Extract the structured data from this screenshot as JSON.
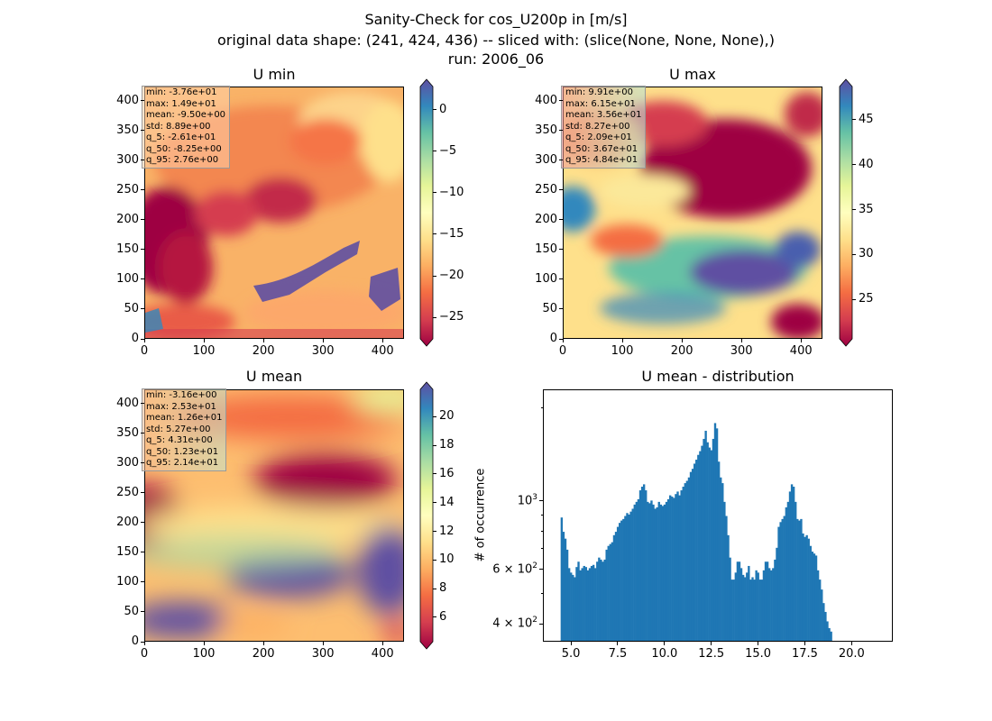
{
  "suptitle": {
    "line1": "Sanity-Check for cos_U200p in [m/s]",
    "line2": "original data shape: (241, 424, 436) -- sliced with: (slice(None, None, None),)",
    "line3": "run: 2006_06"
  },
  "colormap": "Spectral",
  "maps": [
    {
      "id": "umin",
      "title": "U min",
      "stats": [
        "min: -3.76e+01",
        "max: 1.49e+01",
        "mean: -9.50e+00",
        "std: 8.89e+00",
        "q_5: -2.61e+01",
        "q_50: -8.25e+00",
        "q_95: 2.76e+00"
      ],
      "x_ticks": [
        "0",
        "100",
        "200",
        "300",
        "400"
      ],
      "y_ticks": [
        "0",
        "50",
        "100",
        "150",
        "200",
        "250",
        "300",
        "350",
        "400"
      ],
      "colorbar": {
        "vmin": -27.6,
        "vmax": 2.8,
        "ticks": [
          "0",
          "−5",
          "−10",
          "−15",
          "−20",
          "−25"
        ],
        "tick_values": [
          0,
          -5,
          -10,
          -15,
          -20,
          -25
        ]
      }
    },
    {
      "id": "umax",
      "title": "U max",
      "stats": [
        "min: 9.91e+00",
        "max: 6.15e+01",
        "mean: 3.56e+01",
        "std: 8.27e+00",
        "q_5: 2.09e+01",
        "q_50: 3.67e+01",
        "q_95: 4.84e+01"
      ],
      "x_ticks": [
        "0",
        "100",
        "200",
        "300",
        "400"
      ],
      "y_ticks": [
        "0",
        "50",
        "100",
        "150",
        "200",
        "250",
        "300",
        "350",
        "400"
      ],
      "colorbar": {
        "vmin": 20.6,
        "vmax": 48.7,
        "ticks": [
          "45",
          "40",
          "35",
          "30",
          "25"
        ],
        "tick_values": [
          45,
          40,
          35,
          30,
          25
        ]
      }
    },
    {
      "id": "umean",
      "title": "U mean",
      "stats": [
        "min: -3.16e+00",
        "max: 2.53e+01",
        "mean: 1.26e+01",
        "std: 5.27e+00",
        "q_5: 4.31e+00",
        "q_50: 1.23e+01",
        "q_95: 2.14e+01"
      ],
      "x_ticks": [
        "0",
        "100",
        "200",
        "300",
        "400"
      ],
      "y_ticks": [
        "0",
        "50",
        "100",
        "150",
        "200",
        "250",
        "300",
        "350",
        "400"
      ],
      "colorbar": {
        "vmin": 4.3,
        "vmax": 21.9,
        "ticks": [
          "20",
          "18",
          "16",
          "14",
          "12",
          "10",
          "8",
          "6"
        ],
        "tick_values": [
          20,
          18,
          16,
          14,
          12,
          10,
          8,
          6
        ]
      }
    }
  ],
  "chart_data": {
    "type": "bar",
    "title": "U mean - distribution",
    "xlabel": "",
    "ylabel": "# of occurrence",
    "yscale": "log",
    "xlim": [
      3.5,
      22.2
    ],
    "ylim": [
      350,
      2300
    ],
    "x_ticks": [
      "5.0",
      "7.5",
      "10.0",
      "12.5",
      "15.0",
      "17.5",
      "20.0"
    ],
    "y_ticks": [
      {
        "label_base": "4",
        "label_exp": "2",
        "value": 400
      },
      {
        "label_base": "6",
        "label_exp": "2",
        "value": 600
      },
      {
        "label_base": "10",
        "label_exp": "3",
        "value": 1000
      }
    ],
    "bin_start": 4.4,
    "bin_width": 0.1,
    "counts": [
      890,
      800,
      760,
      700,
      610,
      590,
      580,
      570,
      615,
      640,
      600,
      610,
      620,
      615,
      600,
      610,
      620,
      625,
      610,
      640,
      660,
      650,
      640,
      650,
      700,
      720,
      730,
      740,
      780,
      800,
      830,
      855,
      870,
      880,
      900,
      920,
      910,
      930,
      950,
      980,
      1000,
      1020,
      1090,
      1120,
      1140,
      1090,
      1000,
      990,
      1010,
      980,
      950,
      960,
      1000,
      980,
      970,
      980,
      1000,
      1020,
      1050,
      1040,
      1030,
      1060,
      1080,
      1050,
      1090,
      1120,
      1150,
      1170,
      1200,
      1250,
      1280,
      1330,
      1370,
      1420,
      1460,
      1520,
      1600,
      1700,
      1560,
      1500,
      1470,
      1600,
      1800,
      1730,
      1350,
      1200,
      1150,
      1000,
      900,
      780,
      660,
      560,
      560,
      590,
      640,
      640,
      610,
      580,
      570,
      590,
      620,
      560,
      570,
      560,
      600,
      590,
      560,
      560,
      600,
      640,
      640,
      610,
      600,
      610,
      650,
      710,
      830,
      860,
      880,
      900,
      960,
      1000,
      1080,
      1140,
      1120,
      1000,
      880,
      870,
      880,
      790,
      770,
      780,
      760,
      720,
      690,
      680,
      670,
      600,
      560,
      520,
      470,
      440,
      410,
      390,
      380
    ]
  }
}
